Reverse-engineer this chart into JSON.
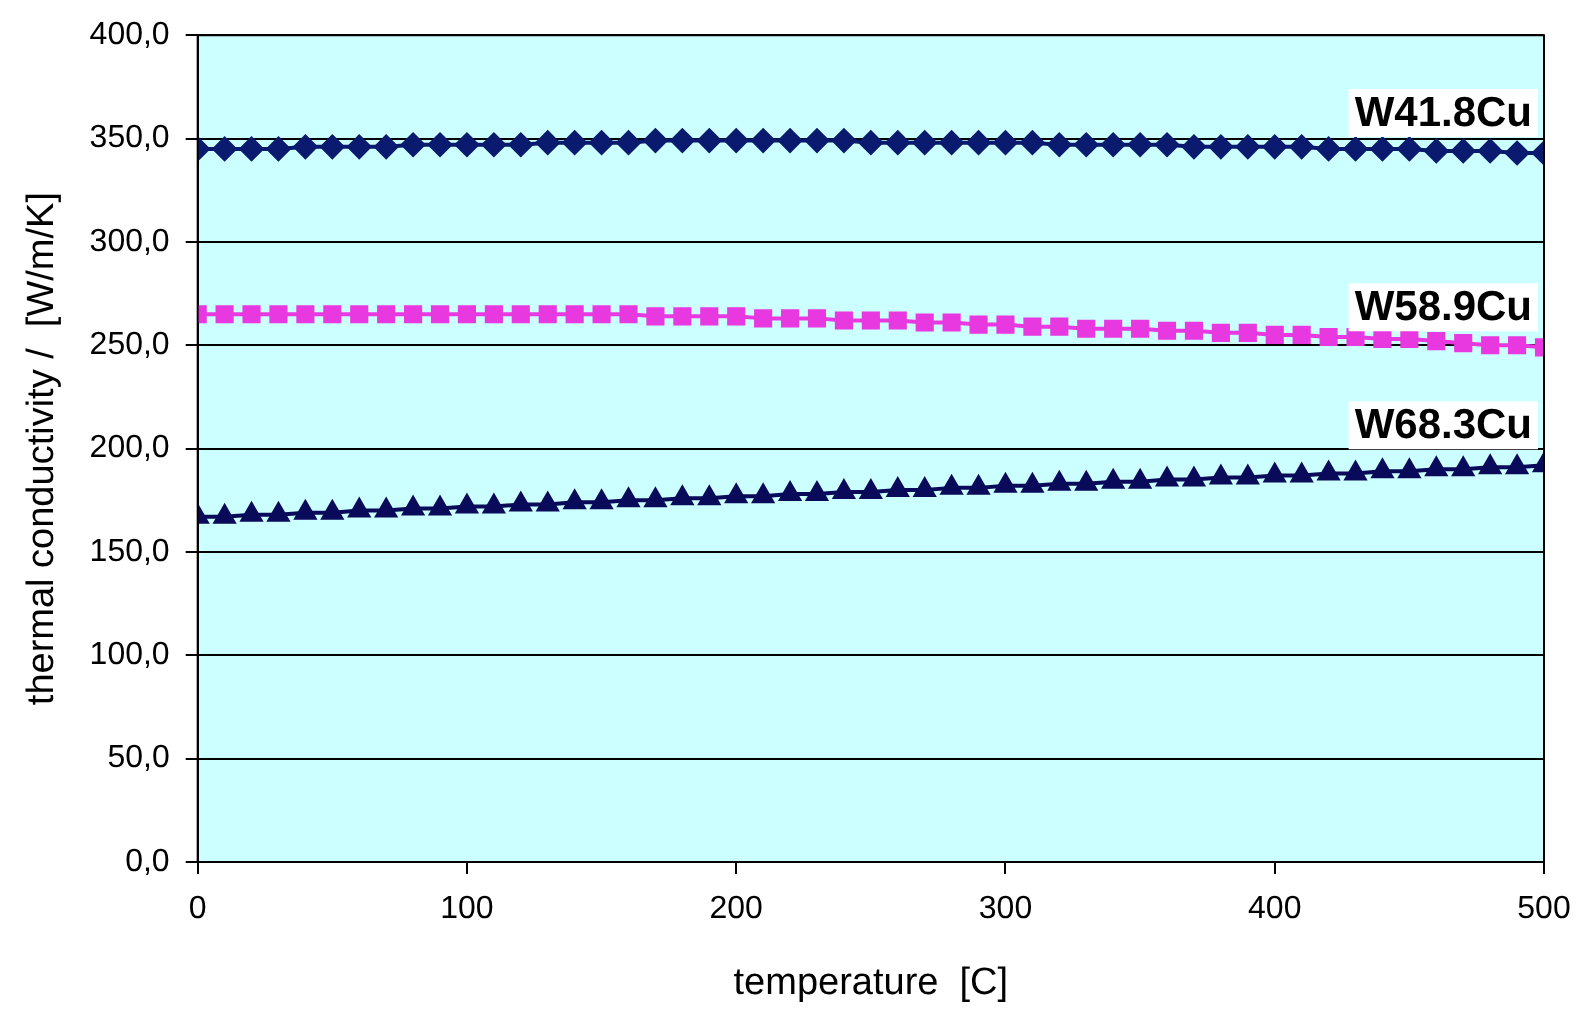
{
  "chart_data": {
    "type": "line",
    "xlabel": "temperature  [C]",
    "ylabel": "thermal conductivity /  [W/m/K]",
    "x": [
      0,
      10,
      20,
      30,
      40,
      50,
      60,
      70,
      80,
      90,
      100,
      110,
      120,
      130,
      140,
      150,
      160,
      170,
      180,
      190,
      200,
      210,
      220,
      230,
      240,
      250,
      260,
      270,
      280,
      290,
      300,
      310,
      320,
      330,
      340,
      350,
      360,
      370,
      380,
      390,
      400,
      410,
      420,
      430,
      440,
      450,
      460,
      470,
      480,
      490,
      500
    ],
    "series": [
      {
        "name": "W41.8Cu",
        "color": "#0a1a6e",
        "marker": "diamond",
        "values": [
          345,
          345,
          345,
          345,
          346,
          346,
          346,
          346,
          347,
          347,
          347,
          347,
          347,
          348,
          348,
          348,
          348,
          349,
          349,
          349,
          349,
          349,
          349,
          349,
          349,
          348,
          348,
          348,
          348,
          348,
          348,
          348,
          347,
          347,
          347,
          347,
          347,
          346,
          346,
          346,
          346,
          346,
          345,
          345,
          345,
          345,
          344,
          344,
          344,
          343,
          343
        ]
      },
      {
        "name": "W58.9Cu",
        "color": "#e838e0",
        "marker": "square",
        "values": [
          265,
          265,
          265,
          265,
          265,
          265,
          265,
          265,
          265,
          265,
          265,
          265,
          265,
          265,
          265,
          265,
          265,
          264,
          264,
          264,
          264,
          263,
          263,
          263,
          262,
          262,
          262,
          261,
          261,
          260,
          260,
          259,
          259,
          258,
          258,
          258,
          257,
          257,
          256,
          256,
          255,
          255,
          254,
          254,
          253,
          253,
          252,
          251,
          250,
          250,
          249
        ]
      },
      {
        "name": "W68.3Cu",
        "color": "#0a0a5a",
        "marker": "triangle",
        "values": [
          167,
          167,
          168,
          168,
          169,
          169,
          170,
          170,
          171,
          171,
          172,
          172,
          173,
          173,
          174,
          174,
          175,
          175,
          176,
          176,
          177,
          177,
          178,
          178,
          179,
          179,
          180,
          180,
          181,
          181,
          182,
          182,
          183,
          183,
          184,
          184,
          185,
          185,
          186,
          186,
          187,
          187,
          188,
          188,
          189,
          189,
          190,
          190,
          191,
          191,
          192
        ]
      }
    ],
    "xlim": [
      0,
      500
    ],
    "xticks": [
      0,
      100,
      200,
      300,
      400,
      500
    ],
    "ylim": [
      0,
      400
    ],
    "yticks": [
      {
        "value": 0,
        "label": "0,0"
      },
      {
        "value": 50,
        "label": "50,0"
      },
      {
        "value": 100,
        "label": "100,0"
      },
      {
        "value": 150,
        "label": "150,0"
      },
      {
        "value": 200,
        "label": "200,0"
      },
      {
        "value": 250,
        "label": "250,0"
      },
      {
        "value": 300,
        "label": "300,0"
      },
      {
        "value": 350,
        "label": "350,0"
      },
      {
        "value": 400,
        "label": "400,0"
      }
    ],
    "grid": "y",
    "legend": false
  }
}
